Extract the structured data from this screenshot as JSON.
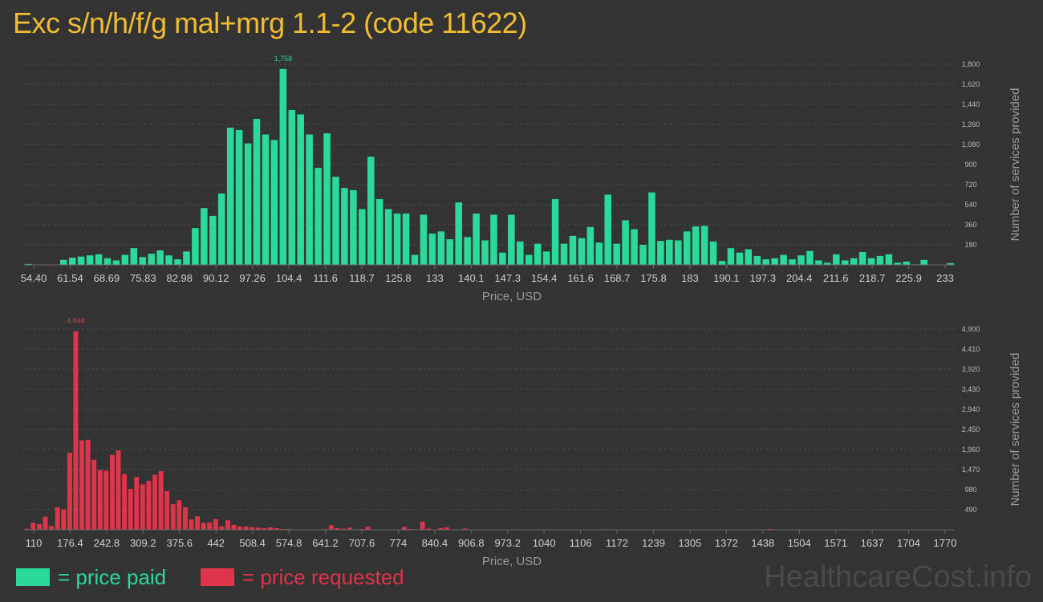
{
  "title": "Exc s/n/h/f/g mal+mrg 1.1-2 (code 11622)",
  "watermark": "HealthcareCost.info",
  "legend": {
    "paid_label": "= price paid",
    "requested_label": "= price requested",
    "paid_color": "#2bd99b",
    "requested_color": "#e0344a"
  },
  "chart_data": [
    {
      "type": "bar",
      "name": "price paid",
      "color": "#2bd99b",
      "xlabel": "Price, USD",
      "ylabel": "Number of services provided",
      "x_ticks": [
        "54.40",
        "61.54",
        "68.69",
        "75.83",
        "82.98",
        "90.12",
        "97.26",
        "104.4",
        "111.6",
        "118.7",
        "125.8",
        "133",
        "140.1",
        "147.3",
        "154.4",
        "161.6",
        "168.7",
        "175.8",
        "183",
        "190.1",
        "197.3",
        "204.4",
        "211.6",
        "218.7",
        "225.9",
        "233"
      ],
      "x_range": [
        54.4,
        233
      ],
      "y_ticks": [
        180,
        360,
        540,
        720,
        900,
        1080,
        1260,
        1440,
        1620,
        1800
      ],
      "ylim": [
        0,
        1800
      ],
      "max_label": "1,758",
      "values": [
        8,
        0,
        0,
        0,
        45,
        65,
        75,
        85,
        95,
        60,
        40,
        90,
        150,
        70,
        100,
        130,
        85,
        50,
        120,
        330,
        510,
        440,
        640,
        1230,
        1210,
        1090,
        1310,
        1170,
        1120,
        1758,
        1390,
        1350,
        1170,
        870,
        1180,
        790,
        690,
        670,
        500,
        970,
        590,
        500,
        460,
        460,
        90,
        450,
        280,
        300,
        230,
        560,
        250,
        460,
        220,
        450,
        110,
        450,
        210,
        90,
        190,
        120,
        590,
        190,
        260,
        240,
        340,
        200,
        630,
        190,
        400,
        320,
        180,
        650,
        215,
        225,
        220,
        300,
        345,
        350,
        210,
        35,
        150,
        110,
        140,
        80,
        50,
        60,
        90,
        50,
        85,
        125,
        40,
        20,
        95,
        40,
        60,
        115,
        60,
        80,
        95,
        20,
        30,
        5,
        45,
        0,
        0,
        15
      ]
    },
    {
      "type": "bar",
      "name": "price requested",
      "color": "#e0344a",
      "xlabel": "Price, USD",
      "ylabel": "Number of services provided",
      "x_ticks": [
        "110",
        "176.4",
        "242.8",
        "309.2",
        "375.6",
        "442",
        "508.4",
        "574.8",
        "641.2",
        "707.6",
        "774",
        "840.4",
        "906.8",
        "973.2",
        "1040",
        "1106",
        "1172",
        "1239",
        "1305",
        "1372",
        "1438",
        "1504",
        "1571",
        "1637",
        "1704",
        "1770"
      ],
      "x_range": [
        110,
        1770
      ],
      "y_ticks": [
        490,
        980,
        1470,
        1960,
        2450,
        2940,
        3430,
        3920,
        4410,
        4900
      ],
      "ylim": [
        0,
        4900
      ],
      "max_label": "4,848",
      "values": [
        25,
        170,
        140,
        320,
        90,
        550,
        500,
        1880,
        4848,
        2180,
        2200,
        1710,
        1460,
        1440,
        1830,
        1940,
        1360,
        1000,
        1290,
        1110,
        1190,
        1340,
        1430,
        940,
        630,
        720,
        550,
        250,
        330,
        170,
        180,
        260,
        80,
        230,
        120,
        80,
        80,
        60,
        50,
        40,
        60,
        40,
        20,
        20,
        0,
        0,
        0,
        10,
        10,
        15,
        110,
        40,
        25,
        50,
        0,
        20,
        70,
        0,
        0,
        0,
        0,
        0,
        70,
        20,
        0,
        200,
        30,
        0,
        40,
        60,
        0,
        0,
        30,
        0,
        0,
        0,
        0,
        0,
        0,
        0,
        0,
        0,
        0,
        0,
        0,
        0,
        0,
        0,
        0,
        0,
        0,
        0,
        0,
        0,
        0,
        15,
        0,
        0,
        0,
        0,
        0,
        0,
        0,
        0,
        0,
        0,
        0,
        0,
        0,
        0,
        0,
        0,
        0,
        0,
        0,
        0,
        0,
        0,
        0,
        0,
        0,
        0,
        20,
        0,
        0,
        0,
        0,
        0,
        0,
        0,
        0,
        0,
        0,
        0,
        0,
        0,
        0,
        0,
        0,
        0,
        0,
        0,
        0,
        0,
        0,
        0,
        0,
        0,
        0,
        0,
        0,
        0,
        10
      ]
    }
  ]
}
